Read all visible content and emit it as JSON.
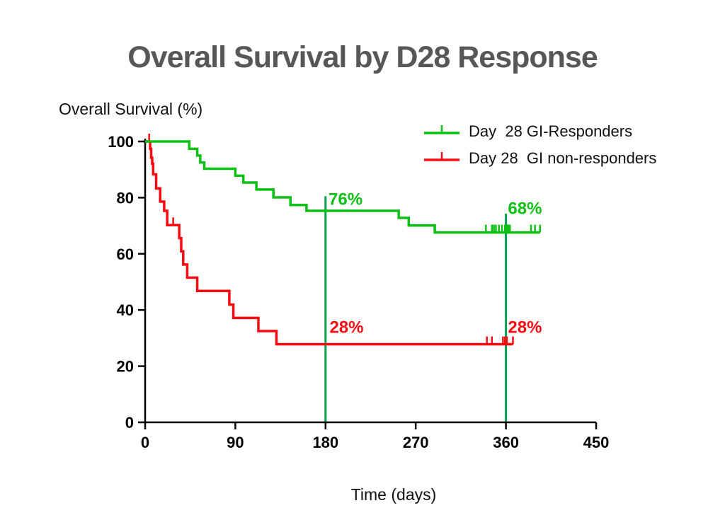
{
  "title": {
    "text": "Overall Survival by D28 Response",
    "color": "#57575a"
  },
  "axis_titles": {
    "y": "Overall Survival (%)",
    "x": "Time (days)"
  },
  "legend": {
    "items": [
      {
        "label": "Day  28 GI-Responders",
        "color": "#0cc113"
      },
      {
        "label": "Day 28  GI non-responders",
        "color": "#fc0a12"
      }
    ]
  },
  "chart_data": {
    "type": "line",
    "variant": "kaplan_meier_step",
    "title": "Overall Survival by D28 Response",
    "xlabel": "Time (days)",
    "ylabel": "Overall Survival (%)",
    "xlim": [
      0,
      450
    ],
    "ylim": [
      0,
      100
    ],
    "x_ticks": [
      0,
      90,
      180,
      270,
      360,
      450
    ],
    "y_ticks": [
      0,
      20,
      40,
      60,
      80,
      100
    ],
    "grid": false,
    "legend_position": "top-right-inside",
    "axis_color": "#000000",
    "tick_label_color": "#000000",
    "series": [
      {
        "name": "Day  28 GI-Responders",
        "color": "#0cc113",
        "steps": [
          [
            0,
            100
          ],
          [
            44,
            97.4
          ],
          [
            52,
            95.0
          ],
          [
            55,
            92.5
          ],
          [
            59,
            90.3
          ],
          [
            90,
            87.8
          ],
          [
            98,
            85.4
          ],
          [
            111,
            82.9
          ],
          [
            128,
            80.1
          ],
          [
            145,
            77.4
          ],
          [
            161,
            75.3
          ],
          [
            253,
            72.8
          ],
          [
            263,
            70.1
          ],
          [
            289,
            67.6
          ],
          [
            394,
            67.6
          ]
        ],
        "censor_marks": [
          [
            340,
            67.6
          ],
          [
            346,
            67.6
          ],
          [
            348,
            67.6
          ],
          [
            350,
            67.6
          ],
          [
            353,
            67.6
          ],
          [
            356,
            67.6
          ],
          [
            359,
            67.6
          ],
          [
            360,
            67.6
          ],
          [
            361,
            67.6
          ],
          [
            362,
            67.6
          ],
          [
            363,
            67.6
          ],
          [
            364,
            67.6
          ],
          [
            385,
            67.6
          ],
          [
            389,
            67.6
          ],
          [
            394,
            67.6
          ]
        ]
      },
      {
        "name": "Day 28  GI non-responders",
        "color": "#fc0a12",
        "steps": [
          [
            0,
            100
          ],
          [
            5,
            97.4
          ],
          [
            6,
            94.2
          ],
          [
            7,
            92.1
          ],
          [
            8,
            88.3
          ],
          [
            11,
            83.3
          ],
          [
            15,
            78.6
          ],
          [
            19,
            75.3
          ],
          [
            22,
            70.2
          ],
          [
            34,
            65.6
          ],
          [
            36,
            60.9
          ],
          [
            38,
            56.2
          ],
          [
            42,
            51.5
          ],
          [
            52,
            46.8
          ],
          [
            84,
            41.9
          ],
          [
            88,
            37.2
          ],
          [
            113,
            32.5
          ],
          [
            131,
            27.8
          ],
          [
            367,
            27.8
          ]
        ],
        "censor_marks": [
          [
            4,
            100
          ],
          [
            28,
            70.2
          ],
          [
            341,
            27.8
          ],
          [
            346,
            27.8
          ],
          [
            357,
            27.8
          ],
          [
            359,
            27.8
          ],
          [
            361,
            27.8
          ],
          [
            367,
            27.8
          ]
        ]
      }
    ],
    "reference_lines": [
      {
        "x": 180,
        "y_top": 80.5,
        "y_bottom": 0,
        "color": "#00a14e"
      },
      {
        "x": 360,
        "y_top": 74.3,
        "y_bottom": 0,
        "color": "#00a14e"
      }
    ],
    "annotations": [
      {
        "text": "76%",
        "x": 183,
        "y": 77.5,
        "color": "#0cc113"
      },
      {
        "text": "68%",
        "x": 362,
        "y": 74.2,
        "color": "#0cc113"
      },
      {
        "text": "28%",
        "x": 184,
        "y": 31.9,
        "color": "#fc0a12"
      },
      {
        "text": "28%",
        "x": 362,
        "y": 31.9,
        "color": "#fc0a12"
      }
    ]
  }
}
